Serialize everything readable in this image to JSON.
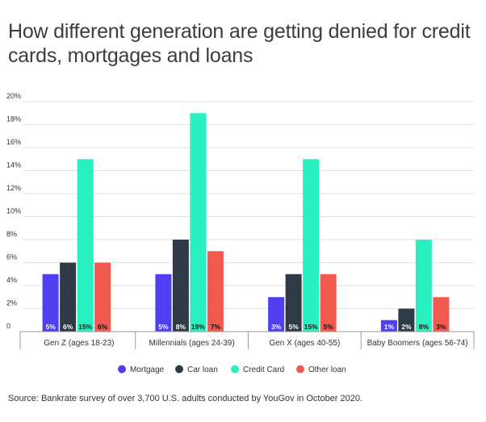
{
  "chart_data": {
    "type": "bar",
    "title": "How different generation are getting denied for credit cards, mortgages and loans",
    "categories": [
      "Gen Z (ages 18-23)",
      "Millennials (ages 24-39)",
      "Gen X (ages 40-55)",
      "Baby Boomers (ages 56-74)"
    ],
    "series": [
      {
        "name": "Mortgage",
        "values": [
          5,
          5,
          3,
          1
        ],
        "labels": [
          "5%",
          "5%",
          "3%",
          "1%"
        ],
        "color": "#4f3ff0"
      },
      {
        "name": "Car loan",
        "values": [
          6,
          8,
          5,
          2
        ],
        "labels": [
          "6%",
          "8%",
          "5%",
          "2%"
        ],
        "color": "#2e3a46"
      },
      {
        "name": "Credit Card",
        "values": [
          15,
          19,
          15,
          8
        ],
        "labels": [
          "15%",
          "19%",
          "15%",
          "8%"
        ],
        "color": "#28f0c0"
      },
      {
        "name": "Other loan",
        "values": [
          6,
          7,
          5,
          3
        ],
        "labels": [
          "6%",
          "7%",
          "5%",
          "3%"
        ],
        "color": "#f25a50"
      }
    ],
    "yticks": [
      "0",
      "2%",
      "4%",
      "6%",
      "8%",
      "10%",
      "12%",
      "14%",
      "16%",
      "18%",
      "20%"
    ],
    "ylim": [
      0,
      20
    ],
    "xlabel": "",
    "ylabel": "",
    "grid": true,
    "legend_position": "bottom",
    "source": "Source: Bankrate survey of over 3,700 U.S. adults conducted by YouGov in October 2020."
  }
}
